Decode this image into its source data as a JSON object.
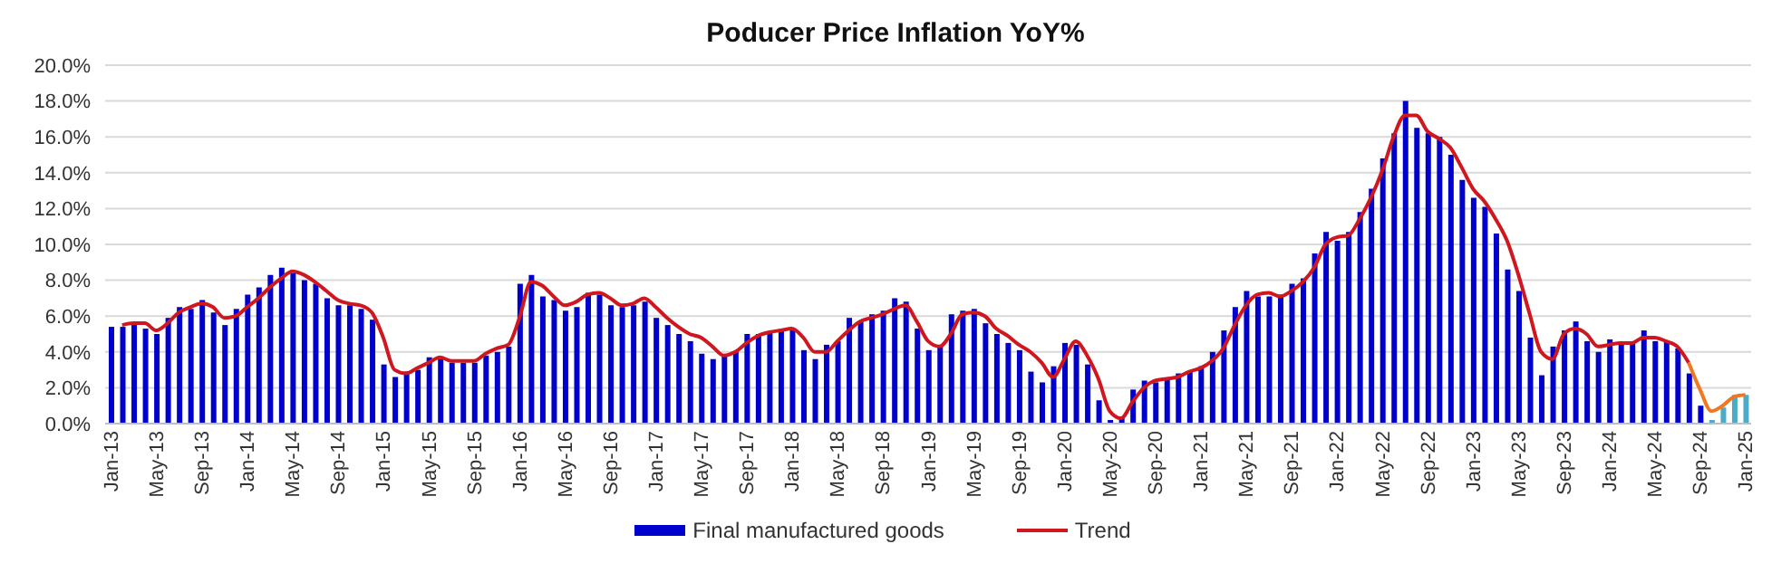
{
  "chart_data": {
    "type": "bar",
    "title": "Poducer Price Inflation YoY%",
    "categories": [
      "Jan-13",
      null,
      null,
      null,
      "May-13",
      null,
      null,
      null,
      "Sep-13",
      null,
      null,
      null,
      "Jan-14",
      null,
      null,
      null,
      "May-14",
      null,
      null,
      null,
      "Sep-14",
      null,
      null,
      null,
      "Jan-15",
      null,
      null,
      null,
      "May-15",
      null,
      null,
      null,
      "Sep-15",
      null,
      null,
      null,
      "Jan-16",
      null,
      null,
      null,
      "May-16",
      null,
      null,
      null,
      "Sep-16",
      null,
      null,
      null,
      "Jan-17",
      null,
      null,
      null,
      "May-17",
      null,
      null,
      null,
      "Sep-17",
      null,
      null,
      null,
      "Jan-18",
      null,
      null,
      null,
      "May-18",
      null,
      null,
      null,
      "Sep-18",
      null,
      null,
      null,
      "Jan-19",
      null,
      null,
      null,
      "May-19",
      null,
      null,
      null,
      "Sep-19",
      null,
      null,
      null,
      "Jan-20",
      null,
      null,
      null,
      "May-20",
      null,
      null,
      null,
      "Sep-20",
      null,
      null,
      null,
      "Jan-21",
      null,
      null,
      null,
      "May-21",
      null,
      null,
      null,
      "Sep-21",
      null,
      null,
      null,
      "Jan-22",
      null,
      null,
      null,
      "May-22",
      null,
      null,
      null,
      "Sep-22",
      null,
      null,
      null,
      "Jan-23",
      null,
      null,
      null,
      "May-23",
      null,
      null,
      null,
      "Sep-23",
      null,
      null,
      null,
      "Jan-24",
      null,
      null,
      null,
      "May-24",
      null,
      null,
      null,
      "Sep-24",
      null,
      null,
      null,
      "Jan-25"
    ],
    "series": [
      {
        "name": "Final manufactured goods",
        "color": "#0000cc",
        "colors": [
          "#0000cc",
          "#0000cc",
          "#0000cc",
          "#0000cc",
          "#0000cc",
          "#0000cc",
          "#0000cc",
          "#0000cc",
          "#0000cc",
          "#0000cc",
          "#0000cc",
          "#0000cc",
          "#0000cc",
          "#0000cc",
          "#0000cc",
          "#0000cc",
          "#0000cc",
          "#0000cc",
          "#0000cc",
          "#0000cc",
          "#0000cc",
          "#0000cc",
          "#0000cc",
          "#0000cc",
          "#0000cc",
          "#0000cc",
          "#0000cc",
          "#0000cc",
          "#0000cc",
          "#0000cc",
          "#0000cc",
          "#0000cc",
          "#0000cc",
          "#0000cc",
          "#0000cc",
          "#0000cc",
          "#0000cc",
          "#0000cc",
          "#0000cc",
          "#0000cc",
          "#0000cc",
          "#0000cc",
          "#0000cc",
          "#0000cc",
          "#0000cc",
          "#0000cc",
          "#0000cc",
          "#0000cc",
          "#0000cc",
          "#0000cc",
          "#0000cc",
          "#0000cc",
          "#0000cc",
          "#0000cc",
          "#0000cc",
          "#0000cc",
          "#0000cc",
          "#0000cc",
          "#0000cc",
          "#0000cc",
          "#0000cc",
          "#0000cc",
          "#0000cc",
          "#0000cc",
          "#0000cc",
          "#0000cc",
          "#0000cc",
          "#0000cc",
          "#0000cc",
          "#0000cc",
          "#0000cc",
          "#0000cc",
          "#0000cc",
          "#0000cc",
          "#0000cc",
          "#0000cc",
          "#0000cc",
          "#0000cc",
          "#0000cc",
          "#0000cc",
          "#0000cc",
          "#0000cc",
          "#0000cc",
          "#0000cc",
          "#0000cc",
          "#0000cc",
          "#0000cc",
          "#0000cc",
          "#0000cc",
          "#0000cc",
          "#0000cc",
          "#0000cc",
          "#0000cc",
          "#0000cc",
          "#0000cc",
          "#0000cc",
          "#0000cc",
          "#0000cc",
          "#0000cc",
          "#0000cc",
          "#0000cc",
          "#0000cc",
          "#0000cc",
          "#0000cc",
          "#0000cc",
          "#0000cc",
          "#0000cc",
          "#0000cc",
          "#0000cc",
          "#0000cc",
          "#0000cc",
          "#0000cc",
          "#0000cc",
          "#0000cc",
          "#0000cc",
          "#0000cc",
          "#0000cc",
          "#0000cc",
          "#0000cc",
          "#0000cc",
          "#0000cc",
          "#0000cc",
          "#0000cc",
          "#0000cc",
          "#0000cc",
          "#0000cc",
          "#0000cc",
          "#0000cc",
          "#0000cc",
          "#0000cc",
          "#0000cc",
          "#0000cc",
          "#0000cc",
          "#0000cc",
          "#0000cc",
          "#0000cc",
          "#0000cc",
          "#0000cc",
          "#0000cc",
          "#0000cc",
          "#0000cc",
          "#4bacc6",
          "#4bacc6",
          "#4bacc6",
          "#4bacc6"
        ],
        "values": [
          5.4,
          5.4,
          5.6,
          5.3,
          5.0,
          5.9,
          6.5,
          6.4,
          6.9,
          6.2,
          5.5,
          6.4,
          7.2,
          7.6,
          8.3,
          8.7,
          8.4,
          8.0,
          7.8,
          7.0,
          6.6,
          6.6,
          6.4,
          5.8,
          3.3,
          2.6,
          2.9,
          3.0,
          3.7,
          3.6,
          3.4,
          3.4,
          3.4,
          3.8,
          4.0,
          4.3,
          7.8,
          8.3,
          7.1,
          6.9,
          6.3,
          6.5,
          7.3,
          7.2,
          6.6,
          6.5,
          6.6,
          6.8,
          5.9,
          5.5,
          5.0,
          4.6,
          3.9,
          3.6,
          3.8,
          4.0,
          5.0,
          5.0,
          5.1,
          5.2,
          5.2,
          4.1,
          3.6,
          4.4,
          4.6,
          5.9,
          5.7,
          6.1,
          6.3,
          7.0,
          6.8,
          5.3,
          4.1,
          4.4,
          6.1,
          6.3,
          6.4,
          5.6,
          5.0,
          4.5,
          4.1,
          2.9,
          2.3,
          3.2,
          4.5,
          4.4,
          3.3,
          1.3,
          0.2,
          0.3,
          1.9,
          2.4,
          2.3,
          2.5,
          2.8,
          2.9,
          3.2,
          4.0,
          5.2,
          6.5,
          7.4,
          7.1,
          7.1,
          7.2,
          7.8,
          8.1,
          9.5,
          10.7,
          10.2,
          10.7,
          11.8,
          13.1,
          14.8,
          16.2,
          18.0,
          16.5,
          16.2,
          16.0,
          15.0,
          13.6,
          12.6,
          12.1,
          10.6,
          8.6,
          7.4,
          4.8,
          2.7,
          4.3,
          5.2,
          5.7,
          4.6,
          4.0,
          4.7,
          4.5,
          4.5,
          5.2,
          4.6,
          4.6,
          4.2,
          2.8,
          1.0,
          0.2,
          0.9,
          1.6,
          1.6
        ]
      },
      {
        "name": "Trend",
        "type": "line",
        "color": "#d0161e",
        "values": [
          null,
          5.5,
          5.6,
          5.6,
          5.2,
          5.6,
          6.2,
          6.5,
          6.7,
          6.5,
          5.9,
          6.0,
          6.5,
          7.0,
          7.6,
          8.1,
          8.5,
          8.3,
          7.9,
          7.4,
          6.9,
          6.7,
          6.6,
          6.2,
          4.8,
          3.0,
          2.8,
          3.1,
          3.4,
          3.7,
          3.5,
          3.5,
          3.5,
          3.9,
          4.2,
          4.4,
          5.9,
          7.9,
          7.7,
          7.1,
          6.6,
          6.8,
          7.2,
          7.3,
          7.0,
          6.6,
          6.7,
          7.0,
          6.5,
          5.9,
          5.4,
          5.0,
          4.8,
          4.3,
          3.8,
          4.0,
          4.5,
          4.9,
          5.1,
          5.2,
          5.3,
          4.8,
          4.0,
          4.0,
          4.6,
          5.2,
          5.7,
          5.9,
          6.1,
          6.4,
          6.6,
          5.7,
          4.6,
          4.3,
          5.0,
          6.1,
          6.2,
          6.0,
          5.3,
          4.9,
          4.4,
          4.0,
          3.4,
          2.6,
          3.6,
          4.6,
          3.8,
          2.5,
          0.7,
          0.3,
          1.2,
          2.0,
          2.4,
          2.5,
          2.6,
          2.9,
          3.1,
          3.5,
          4.2,
          5.5,
          6.6,
          7.2,
          7.3,
          7.1,
          7.4,
          7.9,
          8.7,
          10.0,
          10.4,
          10.5,
          11.4,
          12.6,
          14.1,
          16.0,
          17.2,
          17.2,
          16.3,
          15.9,
          15.4,
          14.3,
          13.1,
          12.4,
          11.4,
          10.2,
          8.3,
          6.1,
          4.0,
          3.6,
          5.0,
          5.3,
          5.0,
          4.3,
          4.4,
          4.5,
          4.5,
          4.8,
          4.8,
          4.6,
          4.3,
          3.4,
          null,
          null,
          null,
          null,
          null
        ]
      },
      {
        "type": "line",
        "color": "#f07820",
        "values": [
          null,
          null,
          null,
          null,
          null,
          null,
          null,
          null,
          null,
          null,
          null,
          null,
          null,
          null,
          null,
          null,
          null,
          null,
          null,
          null,
          null,
          null,
          null,
          null,
          null,
          null,
          null,
          null,
          null,
          null,
          null,
          null,
          null,
          null,
          null,
          null,
          null,
          null,
          null,
          null,
          null,
          null,
          null,
          null,
          null,
          null,
          null,
          null,
          null,
          null,
          null,
          null,
          null,
          null,
          null,
          null,
          null,
          null,
          null,
          null,
          null,
          null,
          null,
          null,
          null,
          null,
          null,
          null,
          null,
          null,
          null,
          null,
          null,
          null,
          null,
          null,
          null,
          null,
          null,
          null,
          null,
          null,
          null,
          null,
          null,
          null,
          null,
          null,
          null,
          null,
          null,
          null,
          null,
          null,
          null,
          null,
          null,
          null,
          null,
          null,
          null,
          null,
          null,
          null,
          null,
          null,
          null,
          null,
          null,
          null,
          null,
          null,
          null,
          null,
          null,
          null,
          null,
          null,
          null,
          null,
          null,
          null,
          null,
          null,
          null,
          null,
          null,
          null,
          null,
          null,
          null,
          null,
          null,
          null,
          null,
          null,
          null,
          null,
          null,
          3.4,
          1.9,
          0.7,
          1.0,
          1.5,
          1.6
        ]
      }
    ],
    "ylim": [
      0,
      20
    ],
    "yticks": [
      {
        "value": 0,
        "label": "0.0%"
      },
      {
        "value": 2,
        "label": "2.0%"
      },
      {
        "value": 4,
        "label": "4.0%"
      },
      {
        "value": 6,
        "label": "6.0%"
      },
      {
        "value": 8,
        "label": "8.0%"
      },
      {
        "value": 10,
        "label": "10.0%"
      },
      {
        "value": 12,
        "label": "12.0%"
      },
      {
        "value": 14,
        "label": "14.0%"
      },
      {
        "value": 16,
        "label": "16.0%"
      },
      {
        "value": 18,
        "label": "18.0%"
      },
      {
        "value": 20,
        "label": "20.0%"
      }
    ],
    "grid": "y",
    "legend": "bottom",
    "marker": "none",
    "line_style": "solid"
  }
}
